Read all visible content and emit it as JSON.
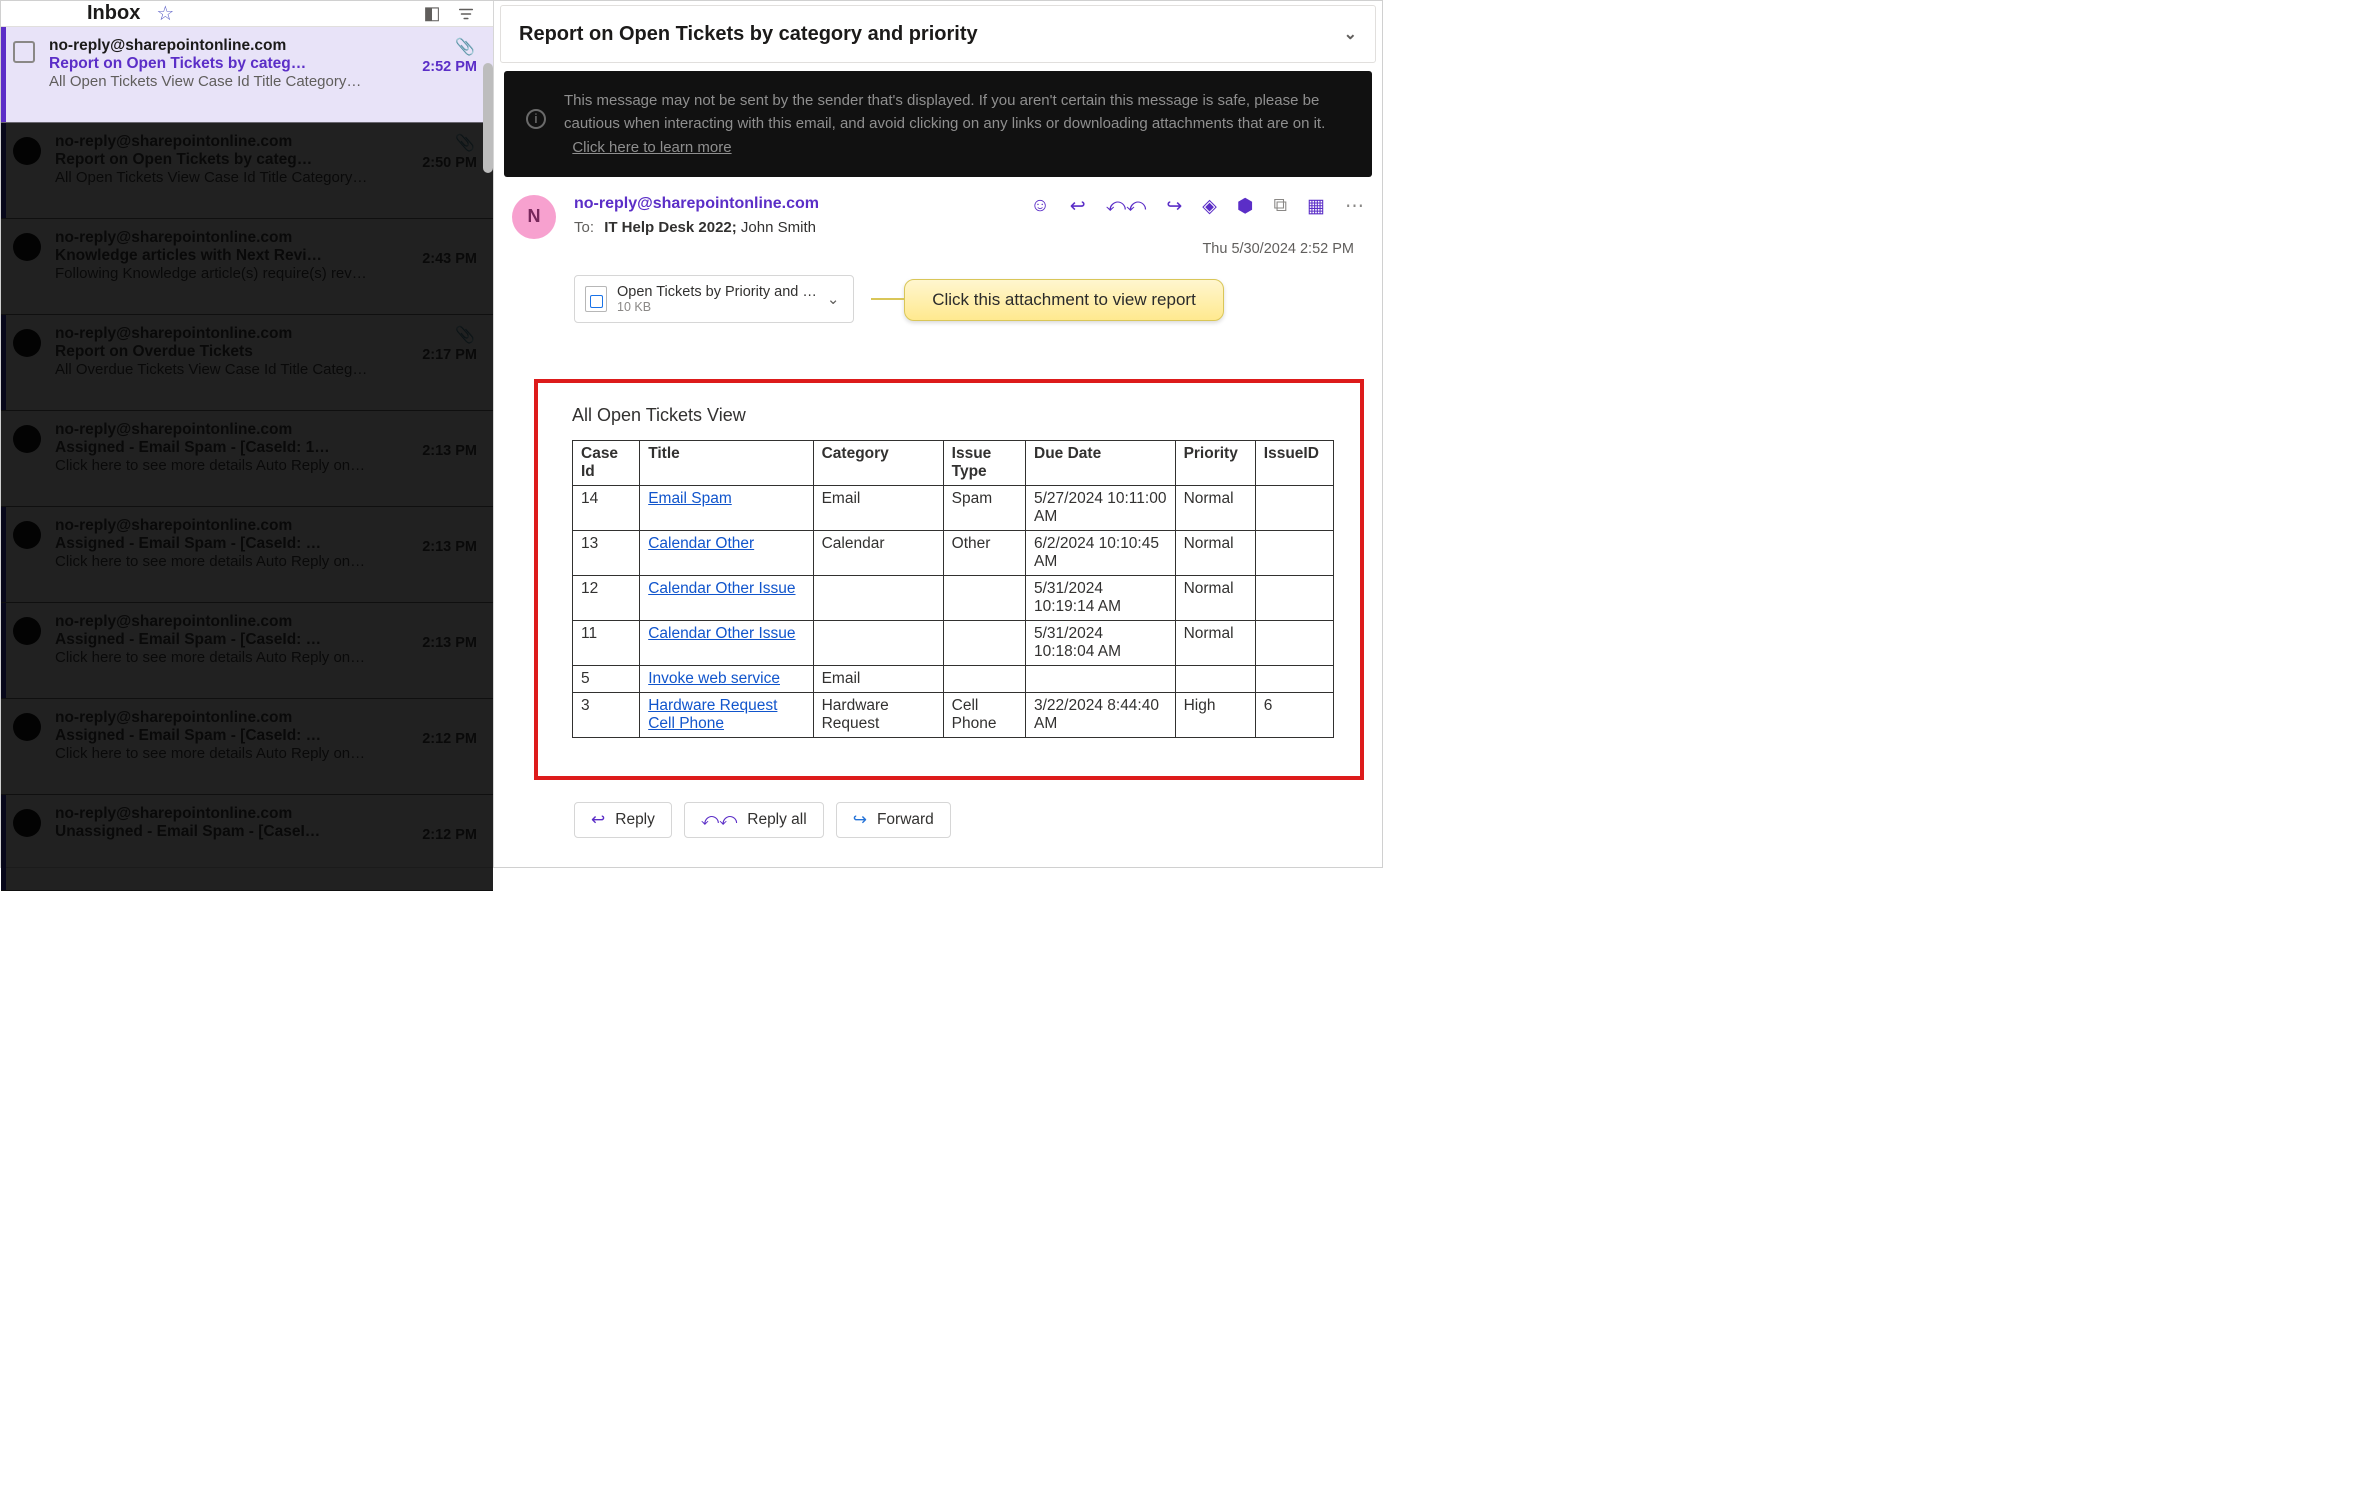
{
  "inbox": {
    "title": "Inbox",
    "items": [
      {
        "from": "no-reply@sharepointonline.com",
        "subject": "Report on Open Tickets by categ…",
        "preview": "All Open Tickets View Case Id Title Category…",
        "time": "2:52 PM",
        "attachment": true,
        "selected": true,
        "unread": true
      },
      {
        "from": "no-reply@sharepointonline.com",
        "subject": "Report on Open Tickets by categ…",
        "preview": "All Open Tickets View Case Id Title Category…",
        "time": "2:50 PM",
        "attachment": true,
        "selected": false,
        "unread": true
      },
      {
        "from": "no-reply@sharepointonline.com",
        "subject": "Knowledge articles with Next Revi…",
        "preview": "Following Knowledge article(s) require(s) rev…",
        "time": "2:43 PM",
        "attachment": false,
        "selected": false,
        "unread": false
      },
      {
        "from": "no-reply@sharepointonline.com",
        "subject": "Report on Overdue Tickets",
        "preview": "All Overdue Tickets View Case Id Title Categ…",
        "time": "2:17 PM",
        "attachment": true,
        "selected": false,
        "unread": true
      },
      {
        "from": "no-reply@sharepointonline.com",
        "subject": "Assigned - Email Spam - [CaseId: 1…",
        "preview": "Click here to see more details Auto Reply on…",
        "time": "2:13 PM",
        "attachment": false,
        "selected": false,
        "unread": false
      },
      {
        "from": "no-reply@sharepointonline.com",
        "subject": "Assigned - Email Spam - [CaseId: …",
        "preview": "Click here to see more details Auto Reply on…",
        "time": "2:13 PM",
        "attachment": false,
        "selected": false,
        "unread": true
      },
      {
        "from": "no-reply@sharepointonline.com",
        "subject": "Assigned - Email Spam - [CaseId: …",
        "preview": "Click here to see more details Auto Reply on…",
        "time": "2:13 PM",
        "attachment": false,
        "selected": false,
        "unread": true
      },
      {
        "from": "no-reply@sharepointonline.com",
        "subject": "Assigned - Email Spam - [CaseId: …",
        "preview": "Click here to see more details Auto Reply on…",
        "time": "2:12 PM",
        "attachment": false,
        "selected": false,
        "unread": false
      },
      {
        "from": "no-reply@sharepointonline.com",
        "subject": "Unassigned - Email Spam - [CaseI…",
        "preview": "",
        "time": "2:12 PM",
        "attachment": false,
        "selected": false,
        "unread": true
      }
    ]
  },
  "reading": {
    "subject": "Report on Open Tickets by category and priority",
    "warning_text": "This message may not be sent by the sender that's displayed. If you aren't certain this message is safe, please be cautious when interacting with this email, and avoid clicking on any links or downloading attachments that are on it.",
    "warning_link": "Click here to learn more",
    "sender": "no-reply@sharepointonline.com",
    "sender_initial": "N",
    "to_label": "To:",
    "recipients": [
      {
        "name": "IT Help Desk 2022;",
        "strong": true
      },
      {
        "name": "John Smith",
        "strong": false
      }
    ],
    "timestamp": "Thu 5/30/2024 2:52 PM",
    "attachment": {
      "name": "Open Tickets by Priority and …",
      "size": "10 KB"
    },
    "callout": "Click this attachment to view report",
    "report": {
      "title": "All Open Tickets View",
      "columns": [
        "Case Id",
        "Title",
        "Category",
        "Issue Type",
        "Due Date",
        "Priority",
        "IssueID"
      ],
      "col_classes": [
        "col-caseid",
        "col-title",
        "col-cat",
        "col-type",
        "col-due",
        "col-pri",
        "col-iss"
      ],
      "rows": [
        {
          "case": "14",
          "title": "Email Spam",
          "cat": "Email",
          "type": "Spam",
          "due": "5/27/2024 10:11:00 AM",
          "pri": "Normal",
          "iss": ""
        },
        {
          "case": "13",
          "title": "Calendar Other",
          "cat": "Calendar",
          "type": "Other",
          "due": "6/2/2024 10:10:45 AM",
          "pri": "Normal",
          "iss": ""
        },
        {
          "case": "12",
          "title": "Calendar Other Issue",
          "cat": "",
          "type": "",
          "due": "5/31/2024 10:19:14 AM",
          "pri": "Normal",
          "iss": ""
        },
        {
          "case": "11",
          "title": "Calendar Other Issue",
          "cat": "",
          "type": "",
          "due": "5/31/2024 10:18:04 AM",
          "pri": "Normal",
          "iss": ""
        },
        {
          "case": "5",
          "title": "Invoke web service",
          "cat": "Email",
          "type": "",
          "due": "",
          "pri": "",
          "iss": ""
        },
        {
          "case": "3",
          "title": "Hardware Request Cell Phone",
          "cat": "Hardware Request",
          "type": "Cell Phone",
          "due": "3/22/2024 8:44:40 AM",
          "pri": "High",
          "iss": "6"
        }
      ]
    },
    "actions": {
      "reply": "Reply",
      "reply_all": "Reply all",
      "forward": "Forward"
    }
  },
  "style": {
    "accent": "#5b2ec7",
    "selected_bg": "#e8e3f8",
    "frame_red": "#dd1b1b",
    "link_blue": "#1155cc",
    "callout_bg_top": "#fff6cf",
    "callout_bg_bottom": "#ffe98f"
  }
}
